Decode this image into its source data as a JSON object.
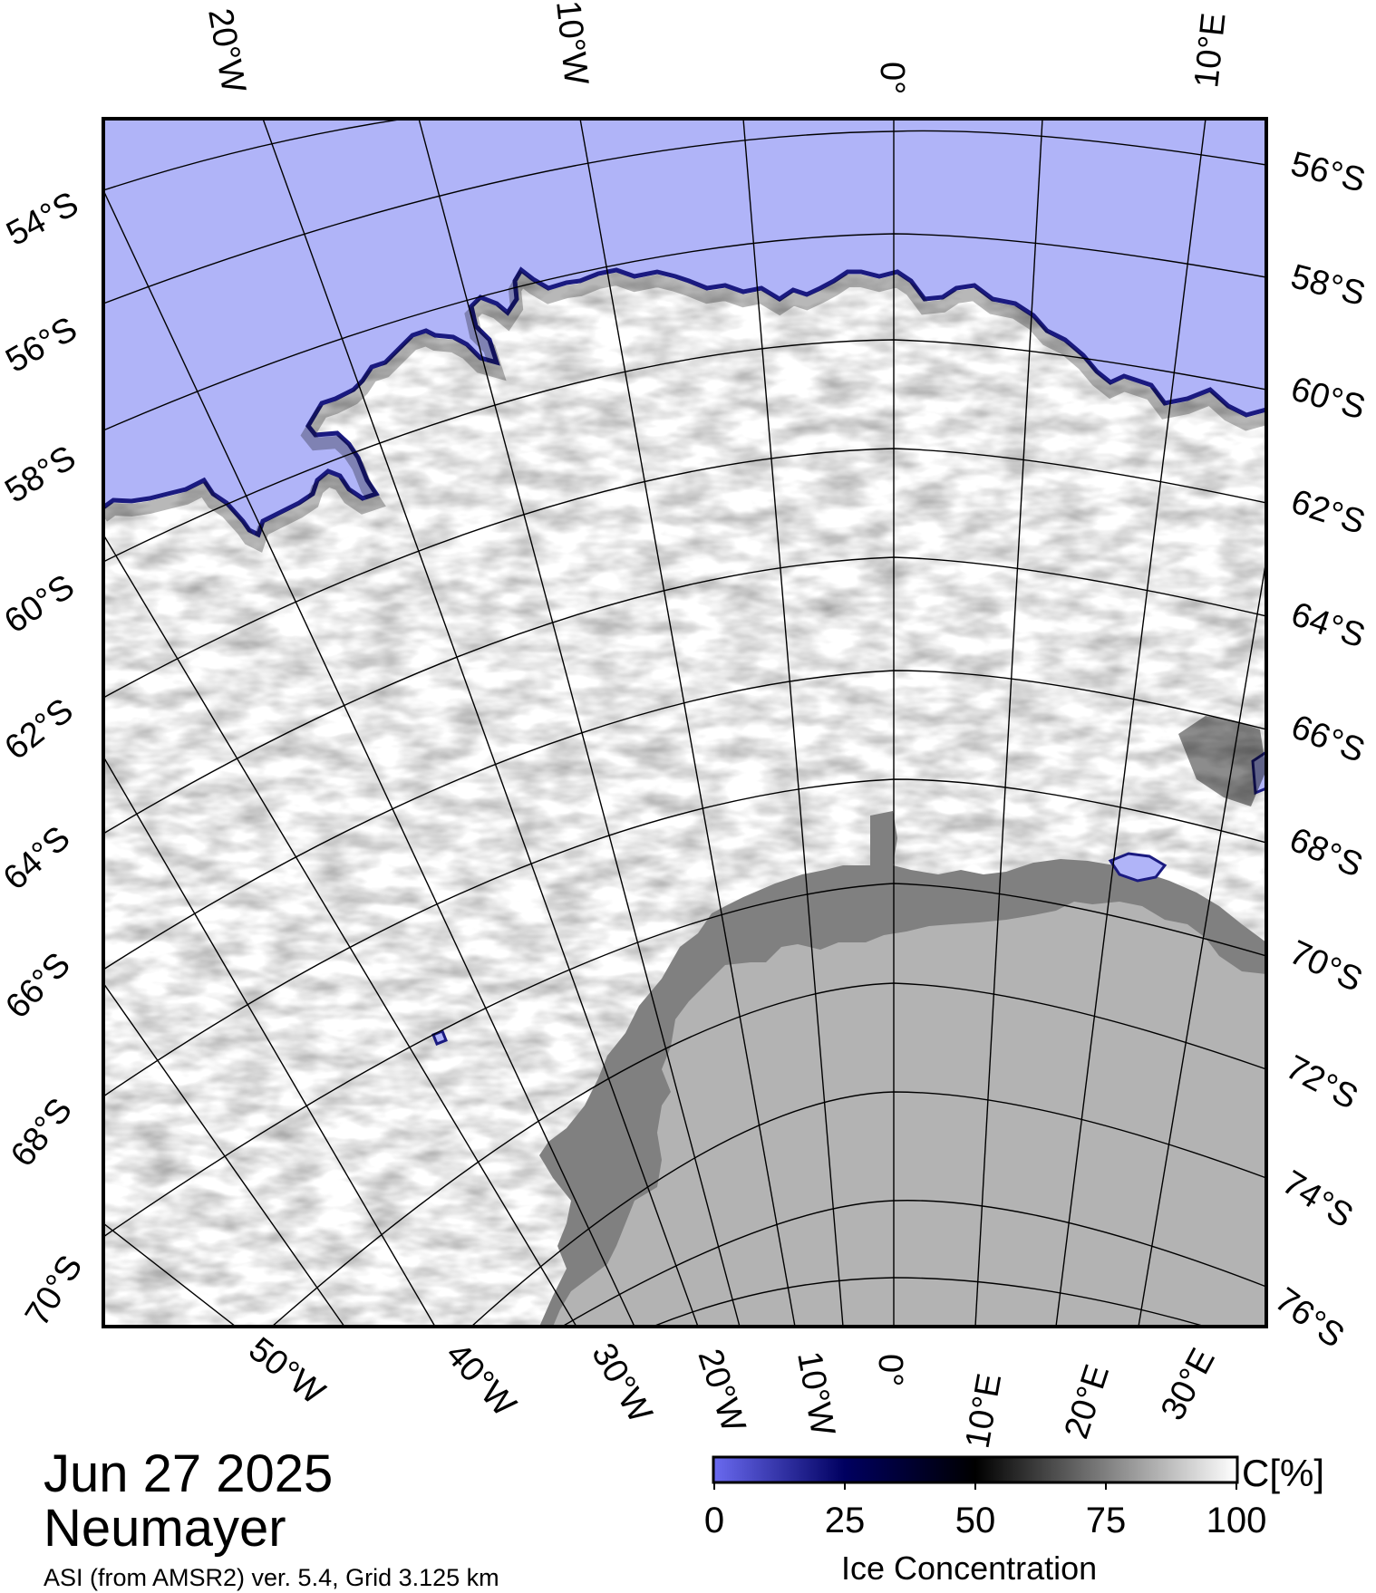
{
  "map": {
    "title_date": "Jun 27 2025",
    "station": "Neumayer",
    "source": "ASI (from AMSR2) ver. 5.4,  Grid 3.125 km",
    "colors": {
      "open_water": "#b0b4f8",
      "sea_ice": "#ffffff",
      "ice_edge": "#1a1a80",
      "land": "#b3b3b3",
      "ice_shelf": "#808080"
    },
    "top_lon_labels": [
      "20°W",
      "10°W",
      "0°",
      "10°E"
    ],
    "bottom_lon_labels": [
      "50°W",
      "40°W",
      "30°W",
      "20°W",
      "10°W",
      "0°",
      "10°E",
      "20°E",
      "30°E"
    ],
    "left_lat_labels": [
      "54°S",
      "56°S",
      "58°S",
      "60°S",
      "62°S",
      "64°S",
      "66°S",
      "68°S",
      "70°S"
    ],
    "right_lat_labels": [
      "56°S",
      "58°S",
      "60°S",
      "62°S",
      "64°S",
      "66°S",
      "68°S",
      "70°S",
      "72°S",
      "74°S",
      "76°S"
    ]
  },
  "colorbar": {
    "unit": "C[%]",
    "title": "Ice Concentration",
    "ticks": [
      "0",
      "25",
      "50",
      "75",
      "100"
    ],
    "stops": [
      "#6a6af0",
      "#000060",
      "#000000",
      "#808080",
      "#ffffff"
    ]
  }
}
